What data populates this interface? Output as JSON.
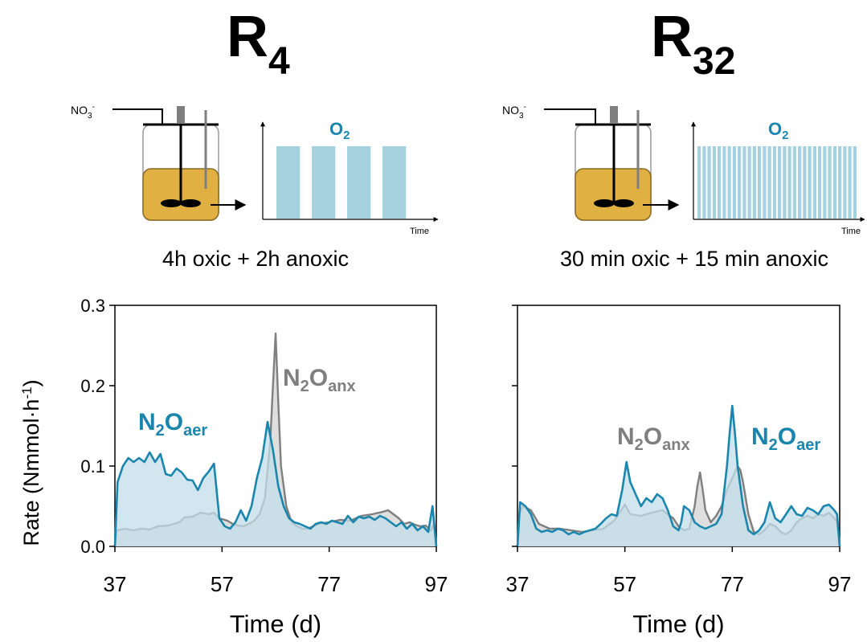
{
  "panels": [
    {
      "title_main": "R",
      "title_sub": "4",
      "schematic": {
        "feed_label": "NO",
        "feed_sub": "3",
        "feed_sup": "-",
        "o2_label": "O",
        "o2_sub": "2",
        "time_label": "Time"
      },
      "regime_label": "4h oxic + 2h anoxic",
      "o2_pattern": {
        "oxic_blocks": 4,
        "oxic_hours": 4,
        "anoxic_hours": 2
      }
    },
    {
      "title_main": "R",
      "title_sub": "32",
      "schematic": {
        "feed_label": "NO",
        "feed_sub": "3",
        "feed_sup": "-",
        "o2_label": "O",
        "o2_sub": "2",
        "time_label": "Time"
      },
      "regime_label": "30 min oxic + 15 min anoxic",
      "o2_pattern": {
        "oxic_blocks": 32,
        "oxic_minutes": 30,
        "anoxic_minutes": 15
      }
    }
  ],
  "ylabel_text": "Rate (Nmmol·h",
  "ylabel_sup": "-1",
  "ylabel_close": ")",
  "colors": {
    "aer": "#1b86ad",
    "aer_fill": "#c2deea",
    "anx": "#7f7f7f",
    "anx_fill": "#dcdcdc",
    "reactor_liquid": "#e0b043",
    "o2_bar": "#a6d1df"
  },
  "chart_data": [
    {
      "type": "area",
      "xlabel": "Time (d)",
      "ylabel": "Rate (Nmmol·h-1)",
      "xlim": [
        37,
        97
      ],
      "ylim": [
        0,
        0.3
      ],
      "xticks": [
        37,
        57,
        77,
        97
      ],
      "yticks": [
        0.0,
        0.1,
        0.2,
        0.3
      ],
      "ytick_labels": [
        "0.0",
        "0.1",
        "0.2",
        "0.3"
      ],
      "series": [
        {
          "key": "anx",
          "name": "N2Oanx",
          "name_main": "N",
          "name_sub1": "2",
          "name_mid": "O",
          "name_sub2": "anx",
          "points": [
            [
              37,
              0.0
            ],
            [
              37.3,
              0.02
            ],
            [
              39,
              0.022
            ],
            [
              40.5,
              0.02
            ],
            [
              42,
              0.022
            ],
            [
              43.5,
              0.021
            ],
            [
              45,
              0.025
            ],
            [
              47,
              0.026
            ],
            [
              49,
              0.03
            ],
            [
              50,
              0.036
            ],
            [
              51.5,
              0.037
            ],
            [
              53,
              0.042
            ],
            [
              54.5,
              0.04
            ],
            [
              55.5,
              0.042
            ],
            [
              56.5,
              0.035
            ],
            [
              58,
              0.032
            ],
            [
              59,
              0.028
            ],
            [
              60,
              0.026
            ],
            [
              61,
              0.025
            ],
            [
              62,
              0.028
            ],
            [
              63,
              0.032
            ],
            [
              64,
              0.04
            ],
            [
              65,
              0.06
            ],
            [
              66,
              0.13
            ],
            [
              66.5,
              0.2
            ],
            [
              67,
              0.265
            ],
            [
              67.5,
              0.18
            ],
            [
              68,
              0.1
            ],
            [
              69,
              0.05
            ],
            [
              70,
              0.03
            ],
            [
              71,
              0.025
            ],
            [
              72,
              0.022
            ],
            [
              73,
              0.022
            ],
            [
              74,
              0.025
            ],
            [
              75,
              0.028
            ],
            [
              77,
              0.03
            ],
            [
              79,
              0.033
            ],
            [
              81,
              0.032
            ],
            [
              83,
              0.038
            ],
            [
              85,
              0.04
            ],
            [
              87,
              0.043
            ],
            [
              88,
              0.045
            ],
            [
              89,
              0.04
            ],
            [
              90,
              0.035
            ],
            [
              91,
              0.028
            ],
            [
              92,
              0.03
            ],
            [
              93,
              0.027
            ],
            [
              94,
              0.025
            ],
            [
              95,
              0.026
            ],
            [
              96,
              0.02
            ],
            [
              96.5,
              0.028
            ],
            [
              97,
              0.0
            ]
          ]
        },
        {
          "key": "aer",
          "name": "N2Oaer",
          "name_main": "N",
          "name_sub1": "2",
          "name_mid": "O",
          "name_sub2": "aer",
          "points": [
            [
              37,
              0.0
            ],
            [
              37.5,
              0.08
            ],
            [
              38.5,
              0.1
            ],
            [
              39.5,
              0.11
            ],
            [
              40.5,
              0.105
            ],
            [
              41.5,
              0.11
            ],
            [
              42.5,
              0.105
            ],
            [
              43.5,
              0.117
            ],
            [
              44.5,
              0.105
            ],
            [
              45.5,
              0.115
            ],
            [
              46.5,
              0.09
            ],
            [
              47.5,
              0.088
            ],
            [
              48.5,
              0.097
            ],
            [
              49.5,
              0.092
            ],
            [
              50.5,
              0.083
            ],
            [
              51.5,
              0.082
            ],
            [
              52.5,
              0.07
            ],
            [
              53.5,
              0.085
            ],
            [
              54.5,
              0.093
            ],
            [
              55.5,
              0.103
            ],
            [
              56.5,
              0.035
            ],
            [
              57.5,
              0.025
            ],
            [
              58.5,
              0.022
            ],
            [
              59.5,
              0.03
            ],
            [
              60.5,
              0.045
            ],
            [
              61.5,
              0.032
            ],
            [
              62.5,
              0.05
            ],
            [
              63.5,
              0.085
            ],
            [
              64.5,
              0.11
            ],
            [
              65.5,
              0.155
            ],
            [
              66.5,
              0.12
            ],
            [
              67.5,
              0.075
            ],
            [
              68.5,
              0.05
            ],
            [
              69.5,
              0.035
            ],
            [
              70.5,
              0.03
            ],
            [
              71.5,
              0.028
            ],
            [
              72.5,
              0.025
            ],
            [
              73.5,
              0.022
            ],
            [
              74.5,
              0.028
            ],
            [
              75.5,
              0.03
            ],
            [
              76.5,
              0.028
            ],
            [
              77.5,
              0.032
            ],
            [
              78.5,
              0.03
            ],
            [
              79.5,
              0.028
            ],
            [
              80.5,
              0.038
            ],
            [
              81.5,
              0.03
            ],
            [
              82.5,
              0.037
            ],
            [
              83.5,
              0.035
            ],
            [
              84.5,
              0.037
            ],
            [
              85.5,
              0.033
            ],
            [
              86.5,
              0.038
            ],
            [
              87.5,
              0.035
            ],
            [
              88.5,
              0.03
            ],
            [
              89.5,
              0.025
            ],
            [
              90.5,
              0.03
            ],
            [
              91.5,
              0.022
            ],
            [
              92.5,
              0.028
            ],
            [
              93.5,
              0.02
            ],
            [
              94.5,
              0.025
            ],
            [
              95.5,
              0.018
            ],
            [
              96.3,
              0.05
            ],
            [
              97,
              0.0
            ]
          ]
        }
      ]
    },
    {
      "type": "area",
      "xlabel": "Time (d)",
      "ylabel": "",
      "xlim": [
        37,
        97
      ],
      "ylim": [
        0,
        0.3
      ],
      "xticks": [
        37,
        57,
        77,
        97
      ],
      "yticks": [
        0.0,
        0.1,
        0.2,
        0.3
      ],
      "ytick_labels": [],
      "series": [
        {
          "key": "anx",
          "name": "N2Oanx",
          "name_main": "N",
          "name_sub1": "2",
          "name_mid": "O",
          "name_sub2": "anx",
          "points": [
            [
              37,
              0.0
            ],
            [
              37.3,
              0.04
            ],
            [
              38,
              0.05
            ],
            [
              39.5,
              0.045
            ],
            [
              41,
              0.028
            ],
            [
              43,
              0.022
            ],
            [
              45,
              0.022
            ],
            [
              47,
              0.02
            ],
            [
              49,
              0.018
            ],
            [
              51,
              0.02
            ],
            [
              53,
              0.022
            ],
            [
              55,
              0.032
            ],
            [
              57,
              0.052
            ],
            [
              58,
              0.04
            ],
            [
              60,
              0.038
            ],
            [
              62,
              0.042
            ],
            [
              64,
              0.045
            ],
            [
              65,
              0.04
            ],
            [
              66,
              0.035
            ],
            [
              67,
              0.025
            ],
            [
              68,
              0.02
            ],
            [
              69,
              0.022
            ],
            [
              70,
              0.05
            ],
            [
              70.5,
              0.075
            ],
            [
              71,
              0.092
            ],
            [
              71.5,
              0.07
            ],
            [
              72,
              0.045
            ],
            [
              73,
              0.03
            ],
            [
              74,
              0.038
            ],
            [
              75,
              0.05
            ],
            [
              76,
              0.07
            ],
            [
              77,
              0.085
            ],
            [
              78,
              0.1
            ],
            [
              78.5,
              0.095
            ],
            [
              79,
              0.08
            ],
            [
              80,
              0.04
            ],
            [
              81,
              0.018
            ],
            [
              82,
              0.015
            ],
            [
              83,
              0.02
            ],
            [
              84,
              0.028
            ],
            [
              85,
              0.025
            ],
            [
              86,
              0.018
            ],
            [
              87,
              0.015
            ],
            [
              88,
              0.02
            ],
            [
              89,
              0.03
            ],
            [
              90,
              0.035
            ],
            [
              91,
              0.038
            ],
            [
              92,
              0.035
            ],
            [
              93,
              0.04
            ],
            [
              94,
              0.038
            ],
            [
              95,
              0.042
            ],
            [
              96,
              0.035
            ],
            [
              96.5,
              0.03
            ],
            [
              97,
              0.0
            ]
          ]
        },
        {
          "key": "aer",
          "name": "N2Oaer",
          "name_main": "N",
          "name_sub1": "2",
          "name_mid": "O",
          "name_sub2": "aer",
          "points": [
            [
              37,
              0.0
            ],
            [
              37.5,
              0.055
            ],
            [
              38.5,
              0.05
            ],
            [
              39.5,
              0.04
            ],
            [
              40.5,
              0.022
            ],
            [
              41.5,
              0.018
            ],
            [
              42.5,
              0.02
            ],
            [
              43.5,
              0.018
            ],
            [
              44.5,
              0.022
            ],
            [
              45.5,
              0.02
            ],
            [
              46.5,
              0.015
            ],
            [
              47.5,
              0.018
            ],
            [
              48.5,
              0.015
            ],
            [
              49.5,
              0.018
            ],
            [
              50.5,
              0.02
            ],
            [
              51.5,
              0.022
            ],
            [
              52.5,
              0.028
            ],
            [
              53.5,
              0.035
            ],
            [
              54.5,
              0.04
            ],
            [
              55.5,
              0.038
            ],
            [
              56.5,
              0.07
            ],
            [
              57.3,
              0.105
            ],
            [
              58,
              0.08
            ],
            [
              59,
              0.065
            ],
            [
              60,
              0.05
            ],
            [
              61,
              0.06
            ],
            [
              62,
              0.055
            ],
            [
              63,
              0.065
            ],
            [
              64,
              0.06
            ],
            [
              65,
              0.045
            ],
            [
              66,
              0.025
            ],
            [
              67,
              0.02
            ],
            [
              67.5,
              0.03
            ],
            [
              68,
              0.05
            ],
            [
              69,
              0.045
            ],
            [
              70,
              0.03
            ],
            [
              71,
              0.025
            ],
            [
              72,
              0.022
            ],
            [
              73,
              0.025
            ],
            [
              74,
              0.028
            ],
            [
              75,
              0.04
            ],
            [
              76,
              0.1
            ],
            [
              76.5,
              0.14
            ],
            [
              77,
              0.175
            ],
            [
              77.5,
              0.14
            ],
            [
              78,
              0.1
            ],
            [
              79,
              0.05
            ],
            [
              80,
              0.02
            ],
            [
              81,
              0.015
            ],
            [
              82,
              0.02
            ],
            [
              83,
              0.03
            ],
            [
              84,
              0.055
            ],
            [
              85,
              0.035
            ],
            [
              86,
              0.03
            ],
            [
              87,
              0.04
            ],
            [
              88,
              0.05
            ],
            [
              89,
              0.04
            ],
            [
              90,
              0.038
            ],
            [
              91,
              0.048
            ],
            [
              92,
              0.045
            ],
            [
              93,
              0.04
            ],
            [
              94,
              0.05
            ],
            [
              95,
              0.052
            ],
            [
              96,
              0.045
            ],
            [
              96.5,
              0.04
            ],
            [
              97,
              0.0
            ]
          ]
        }
      ]
    }
  ]
}
